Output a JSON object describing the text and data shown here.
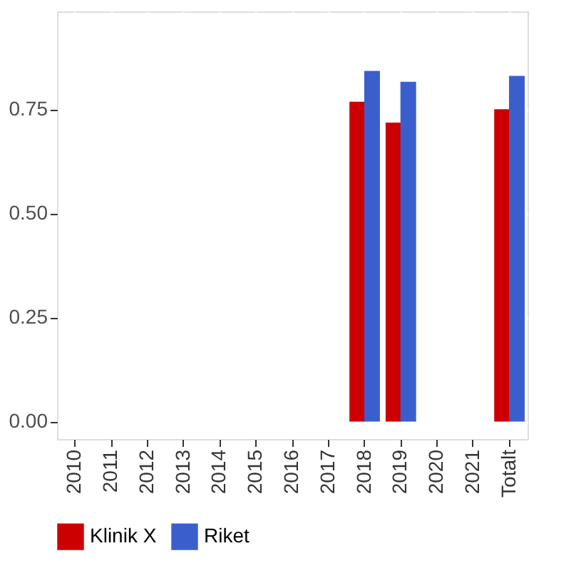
{
  "chart_data": {
    "type": "bar",
    "categories": [
      "2010",
      "2011",
      "2012",
      "2013",
      "2014",
      "2015",
      "2016",
      "2017",
      "2018",
      "2019",
      "2020",
      "2021",
      "Totalt"
    ],
    "series": [
      {
        "name": "Klinik X",
        "color": "#cc0000",
        "values": [
          null,
          null,
          null,
          null,
          null,
          null,
          null,
          null,
          0.768,
          0.718,
          null,
          null,
          0.75
        ]
      },
      {
        "name": "Riket",
        "color": "#3a5fcd",
        "values": [
          null,
          null,
          null,
          null,
          null,
          null,
          null,
          null,
          0.842,
          0.816,
          null,
          null,
          0.83
        ]
      }
    ],
    "ylim": [
      -0.042,
      0.985
    ],
    "yticks": [
      {
        "value": 0,
        "label": "0.00"
      },
      {
        "value": 0.25,
        "label": "0.25"
      },
      {
        "value": 0.5,
        "label": "0.50"
      },
      {
        "value": 0.75,
        "label": "0.75"
      }
    ],
    "grid": true,
    "legend": "bottom"
  }
}
